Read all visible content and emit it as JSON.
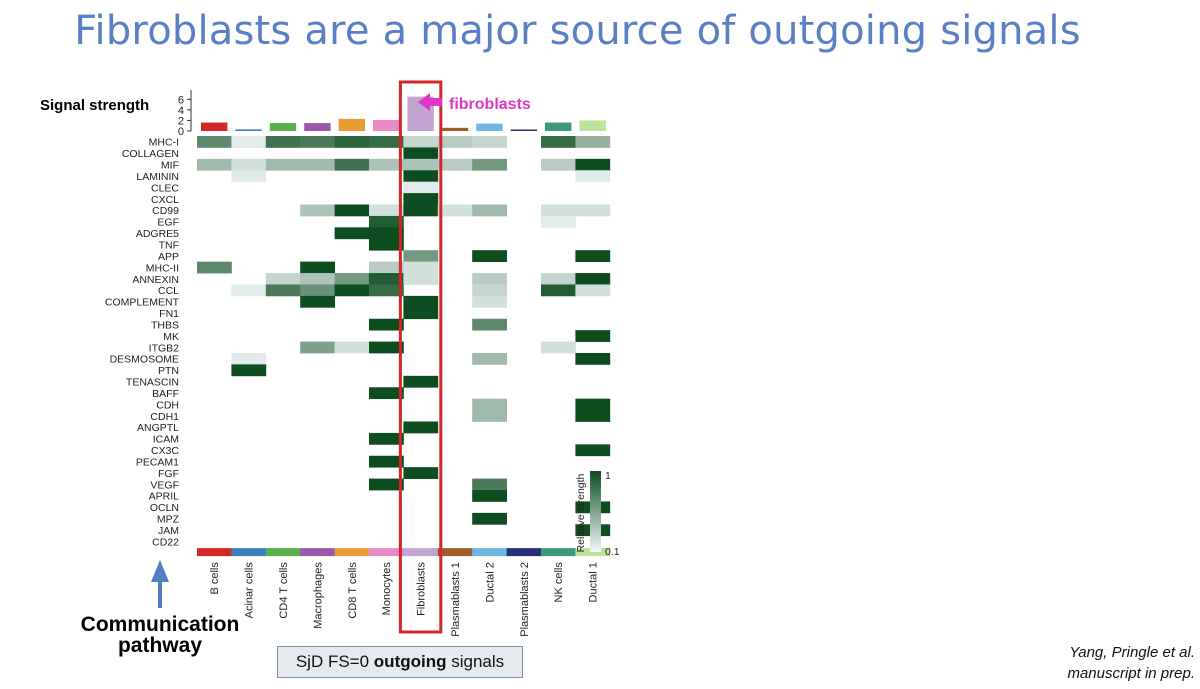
{
  "title": "Fibroblasts are a major source of outgoing signals",
  "caption": {
    "prefix": "SjD FS=0 ",
    "bold": "outgoing",
    "suffix": " signals"
  },
  "left_label": [
    "Communication",
    "pathway"
  ],
  "citation": [
    "Yang, Pringle et al.",
    "manuscript in prep."
  ],
  "chart_data": {
    "type": "heatmap",
    "top_bar_label": "Signal strength",
    "top_bar_ticks": [
      0,
      2,
      4,
      6
    ],
    "top_bar_ylim": [
      0,
      7
    ],
    "highlight_label": "fibroblasts",
    "highlight_column": "Fibroblasts",
    "colorbar_label": "Relative strength",
    "colorbar_ticks": [
      "1",
      "0.1"
    ],
    "colors": {
      "heat_high": "#0e4d1f",
      "heat_low": "#f2f8fb",
      "highlight_box": "#d2262b",
      "arrow_pink": "#dd36c9",
      "arrow_blue": "#4e7fc6"
    },
    "cell_types": [
      {
        "name": "B cells",
        "color": "#d62728",
        "signal": 1.6
      },
      {
        "name": "Acinar cells",
        "color": "#3e7fbd",
        "signal": 0.3
      },
      {
        "name": "CD4 T cells",
        "color": "#5aaf4c",
        "signal": 1.5
      },
      {
        "name": "Macrophages",
        "color": "#9b58a8",
        "signal": 1.5
      },
      {
        "name": "CD8 T cells",
        "color": "#eb9b34",
        "signal": 2.3
      },
      {
        "name": "Monocytes",
        "color": "#e88ac3",
        "signal": 2.1
      },
      {
        "name": "Fibroblasts",
        "color": "#c2a3d1",
        "signal": 6.5
      },
      {
        "name": "Plasmablasts 1",
        "color": "#9e5e2a",
        "signal": 0.6
      },
      {
        "name": "Ductal 2",
        "color": "#6fb7e2",
        "signal": 1.4
      },
      {
        "name": "Plasmablasts 2",
        "color": "#283079",
        "signal": 0.2
      },
      {
        "name": "NK cells",
        "color": "#3c9a7b",
        "signal": 1.6
      },
      {
        "name": "Ductal 1",
        "color": "#bde29a",
        "signal": 2.0
      }
    ],
    "pathways": [
      "MHC-I",
      "COLLAGEN",
      "MIF",
      "LAMININ",
      "CLEC",
      "CXCL",
      "CD99",
      "EGF",
      "ADGRE5",
      "TNF",
      "APP",
      "MHC-II",
      "ANNEXIN",
      "CCL",
      "COMPLEMENT",
      "FN1",
      "THBS",
      "MK",
      "ITGB2",
      "DESMOSOME",
      "PTN",
      "TENASCIN",
      "BAFF",
      "CDH",
      "CDH1",
      "ANGPTL",
      "ICAM",
      "CX3C",
      "PECAM1",
      "FGF",
      "VEGF",
      "APRIL",
      "OCLN",
      "MPZ",
      "JAM",
      "CD22"
    ],
    "values": [
      [
        0.6,
        0.05,
        0.75,
        0.7,
        0.85,
        0.8,
        0.15,
        0.2,
        0.15,
        0,
        0.8,
        0.35
      ],
      [
        0,
        0,
        0,
        0,
        0,
        0,
        1,
        0,
        0,
        0,
        0,
        0
      ],
      [
        0.3,
        0.1,
        0.3,
        0.3,
        0.75,
        0.25,
        0.25,
        0.2,
        0.5,
        0,
        0.2,
        1
      ],
      [
        0,
        0.05,
        0,
        0,
        0,
        0,
        1,
        0,
        0,
        0,
        0,
        0.05
      ],
      [
        0,
        0,
        0,
        0,
        0,
        0,
        0.05,
        0,
        0,
        0,
        0,
        0
      ],
      [
        0,
        0,
        0,
        0,
        0,
        0,
        1,
        0,
        0,
        0,
        0,
        0
      ],
      [
        0,
        0,
        0,
        0.25,
        1,
        0.1,
        1,
        0.1,
        0.3,
        0,
        0.1,
        0.1
      ],
      [
        0,
        0,
        0,
        0,
        0,
        0.9,
        0,
        0,
        0,
        0,
        0.05,
        0
      ],
      [
        0,
        0,
        0,
        0,
        1,
        1,
        0,
        0,
        0,
        0,
        0,
        0
      ],
      [
        0,
        0,
        0,
        0,
        0,
        1,
        0,
        0,
        0,
        0,
        0,
        0
      ],
      [
        0,
        0,
        0,
        0,
        0,
        0,
        0.5,
        0,
        1,
        0,
        0,
        1
      ],
      [
        0.6,
        0,
        0,
        1,
        0,
        0.2,
        0.1,
        0,
        0,
        0,
        0,
        0
      ],
      [
        0,
        0,
        0.15,
        0.25,
        0.5,
        0.9,
        0.1,
        0,
        0.2,
        0,
        0.15,
        1
      ],
      [
        0,
        0.05,
        0.7,
        0.55,
        1,
        0.8,
        0,
        0,
        0.15,
        0,
        0.9,
        0.1
      ],
      [
        0,
        0,
        0,
        1,
        0,
        0,
        1,
        0,
        0.1,
        0,
        0,
        0
      ],
      [
        0,
        0,
        0,
        0,
        0,
        0,
        1,
        0,
        0,
        0,
        0,
        0
      ],
      [
        0,
        0,
        0,
        0,
        0,
        1,
        0,
        0,
        0.6,
        0,
        0,
        0
      ],
      [
        0,
        0,
        0,
        0,
        0,
        0,
        0,
        0,
        0,
        0,
        0,
        1
      ],
      [
        0,
        0,
        0,
        0.45,
        0.1,
        1,
        0,
        0,
        0,
        0,
        0.1,
        0
      ],
      [
        0,
        0.05,
        0,
        0,
        0,
        0,
        0,
        0,
        0.3,
        0,
        0,
        1
      ],
      [
        0,
        1,
        0,
        0,
        0,
        0,
        0,
        0,
        0,
        0,
        0,
        0
      ],
      [
        0,
        0,
        0,
        0,
        0,
        0,
        1,
        0,
        0,
        0,
        0,
        0
      ],
      [
        0,
        0,
        0,
        0,
        0,
        1,
        0,
        0,
        0,
        0,
        0,
        0
      ],
      [
        0,
        0,
        0,
        0,
        0,
        0,
        0,
        0,
        0.3,
        0,
        0,
        1
      ],
      [
        0,
        0,
        0,
        0,
        0,
        0,
        0,
        0,
        0.3,
        0,
        0,
        1
      ],
      [
        0,
        0,
        0,
        0,
        0,
        0,
        1,
        0,
        0,
        0,
        0,
        0
      ],
      [
        0,
        0,
        0,
        0,
        0,
        1,
        0,
        0,
        0,
        0,
        0,
        0
      ],
      [
        0,
        0,
        0,
        0,
        0,
        0,
        0,
        0,
        0,
        0,
        0,
        1
      ],
      [
        0,
        0,
        0,
        0,
        0,
        1,
        0,
        0,
        0,
        0,
        0,
        0
      ],
      [
        0,
        0,
        0,
        0,
        0,
        0,
        1,
        0,
        0,
        0,
        0,
        0
      ],
      [
        0,
        0,
        0,
        0,
        0,
        1,
        0,
        0,
        0.7,
        0,
        0,
        0
      ],
      [
        0,
        0,
        0,
        0,
        0,
        0,
        0,
        0,
        1,
        0,
        0,
        0
      ],
      [
        0,
        0,
        0,
        0,
        0,
        0,
        0,
        0,
        0,
        0,
        0,
        1
      ],
      [
        0,
        0,
        0,
        0,
        0,
        0,
        0,
        0,
        1,
        0,
        0,
        0
      ],
      [
        0,
        0,
        0,
        0,
        0,
        0,
        0,
        0,
        0,
        0,
        0,
        1
      ],
      [
        0,
        0,
        0,
        0,
        0,
        0,
        0,
        0,
        0,
        0,
        0,
        0
      ]
    ]
  }
}
